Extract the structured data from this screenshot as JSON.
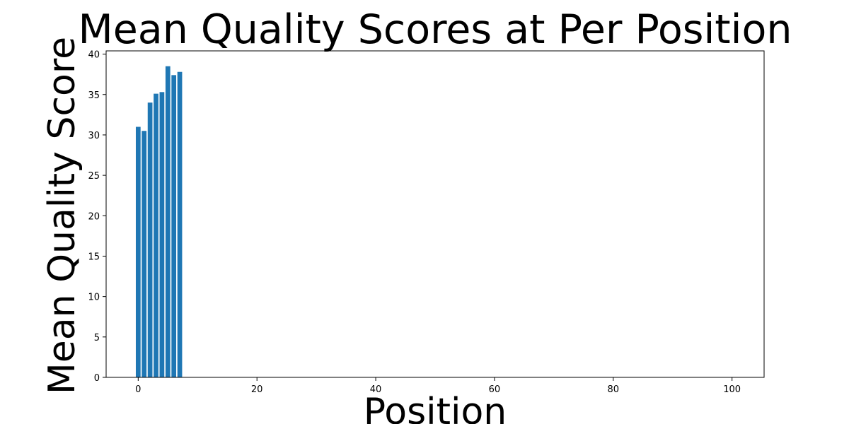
{
  "chart_data": {
    "type": "bar",
    "title": "Mean Quality Scores at Per Position",
    "xlabel": "Position",
    "ylabel": "Mean Quality Score",
    "x": [
      0,
      1,
      2,
      3,
      4,
      5,
      6,
      7
    ],
    "values": [
      31.0,
      30.5,
      34.0,
      35.1,
      35.3,
      38.5,
      37.4,
      37.8
    ],
    "xlim": [
      -5.4,
      105.4
    ],
    "ylim": [
      0,
      40.4
    ],
    "xticks": [
      0,
      20,
      40,
      60,
      80,
      100
    ],
    "yticks": [
      0,
      5,
      10,
      15,
      20,
      25,
      30,
      35,
      40
    ],
    "bar_color": "#1f77b4",
    "grid": false,
    "legend": "none"
  }
}
